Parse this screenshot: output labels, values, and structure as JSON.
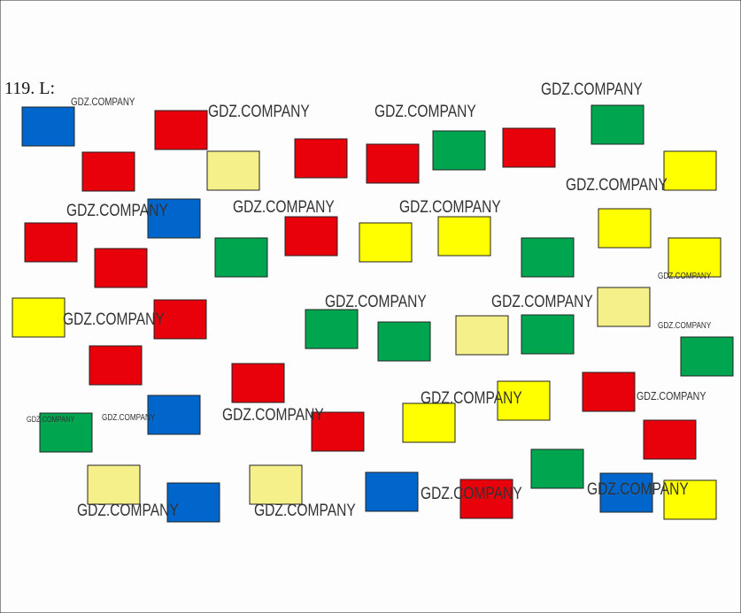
{
  "exercise": {
    "label": "119. L:"
  },
  "watermarks": [
    "GDZ.COMPANY",
    "GDZ.COMPANY",
    "GDZ.COMPANY",
    "GDZ.COMPANY",
    "GDZ.COMPANY",
    "GDZ.COMPANY",
    "GDZ.COMPANY",
    "GDZ.COMPANY",
    "GDZ.COMPANY",
    "GDZ.COMPANY",
    "GDZ.COMPANY",
    "GDZ.COMPANY",
    "GDZ.COMPANY",
    "GDZ.COMPANY",
    "GDZ.COMPANY",
    "GDZ.COMPANY",
    "GDZ.COMPANY",
    "GDZ.COMPANY",
    "GDZ.COMPANY",
    "GDZ.COMPANY",
    "GDZ.COMPANY",
    "GDZ.COMPANY"
  ]
}
